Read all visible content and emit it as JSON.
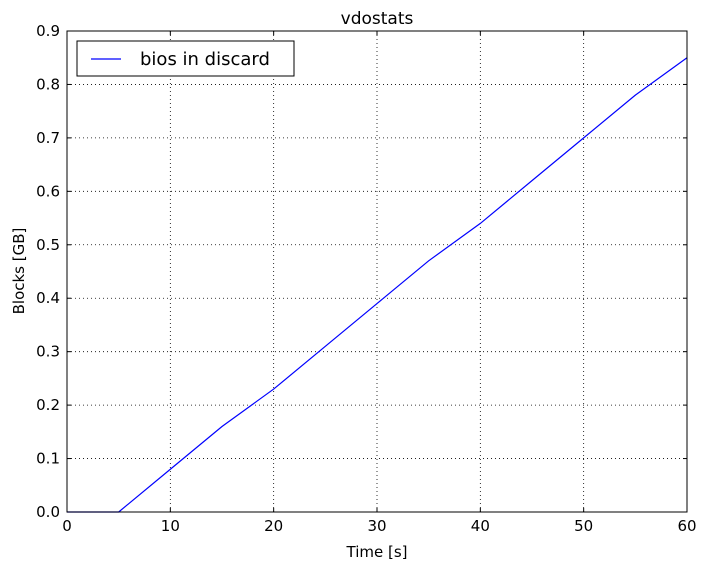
{
  "chart_data": {
    "type": "line",
    "title": "vdostats",
    "xlabel": "Time [s]",
    "ylabel": "Blocks [GB]",
    "xlim": [
      0,
      60
    ],
    "ylim": [
      0,
      0.9
    ],
    "xticks": [
      "0",
      "10",
      "20",
      "30",
      "40",
      "50",
      "60"
    ],
    "yticks": [
      "0.0",
      "0.1",
      "0.2",
      "0.3",
      "0.4",
      "0.5",
      "0.6",
      "0.7",
      "0.8",
      "0.9"
    ],
    "grid": true,
    "legend_position": "top-left",
    "series": [
      {
        "name": "bios in discard",
        "color": "#0000ff",
        "x": [
          0,
          5,
          10,
          15,
          20,
          25,
          30,
          35,
          40,
          45,
          50,
          55,
          60
        ],
        "y": [
          0.0,
          0.0,
          0.08,
          0.16,
          0.23,
          0.31,
          0.39,
          0.47,
          0.54,
          0.62,
          0.7,
          0.78,
          0.85
        ]
      }
    ]
  }
}
